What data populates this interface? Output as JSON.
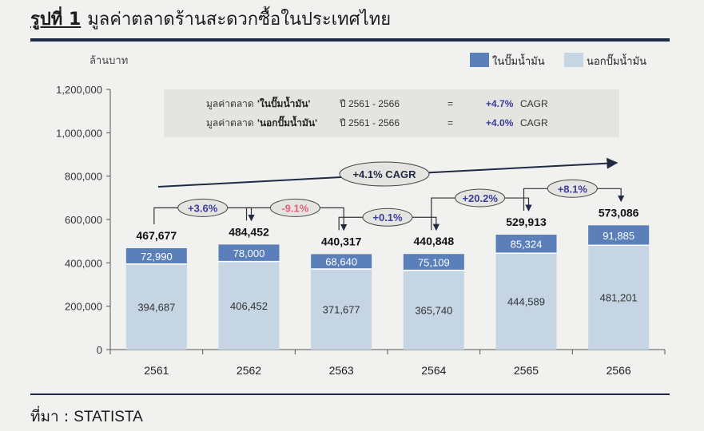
{
  "figure": {
    "number_label": "รูปที่ 1",
    "title": "มูลค่าตลาดร้านสะดวกซื้อในประเทศไทย",
    "source_label": "ที่มา :",
    "source_value": "STATISTA"
  },
  "colors": {
    "in_pump": "#5b7fb8",
    "out_pump": "#c5d5e4",
    "rule": "#1f2a44",
    "negative": "#e0607a",
    "positive": "#3b3b9b",
    "annotation_box": "#e4e5e0"
  },
  "chart_data": {
    "type": "bar",
    "stacked": true,
    "ylabel": "ล้านบาท",
    "ylim": [
      0,
      1200000
    ],
    "yticks": [
      "0",
      "200,000",
      "400,000",
      "600,000",
      "800,000",
      "1,000,000",
      "1,200,000"
    ],
    "categories": [
      "2561",
      "2562",
      "2563",
      "2564",
      "2565",
      "2566"
    ],
    "series": [
      {
        "name": "นอกปั๊มน้ำมัน",
        "values": [
          394687,
          406452,
          371677,
          365740,
          444589,
          481201
        ],
        "labels": [
          "394,687",
          "406,452",
          "371,677",
          "365,740",
          "444,589",
          "481,201"
        ]
      },
      {
        "name": "ในปั๊มน้ำมัน",
        "values": [
          72990,
          78000,
          68640,
          75109,
          85324,
          91885
        ],
        "labels": [
          "72,990",
          "78,000",
          "68,640",
          "75,109",
          "85,324",
          "91,885"
        ]
      }
    ],
    "totals": [
      467677,
      484452,
      440317,
      440848,
      529913,
      573086
    ],
    "total_labels": [
      "467,677",
      "484,452",
      "440,317",
      "440,848",
      "529,913",
      "573,086"
    ],
    "legend_position": "top-right",
    "legend": [
      "ในปั๊มน้ำมัน",
      "นอกปั๊มน้ำมัน"
    ],
    "yoy_changes": [
      "+3.6%",
      "-9.1%",
      "+0.1%",
      "+20.2%",
      "+8.1%"
    ],
    "overall_cagr": "+4.1% CAGR",
    "notes": [
      {
        "prefix": "มูลค่าตลาด",
        "segment": "'ในปั๊มน้ำมัน'",
        "period": "ปี 2561 - 2566",
        "eq": "=",
        "rate": "+4.7%",
        "suffix": "CAGR"
      },
      {
        "prefix": "มูลค่าตลาด",
        "segment": "'นอกปั๊มน้ำมัน'",
        "period": "ปี 2561 - 2566",
        "eq": "=",
        "rate": "+4.0%",
        "suffix": "CAGR"
      }
    ]
  }
}
